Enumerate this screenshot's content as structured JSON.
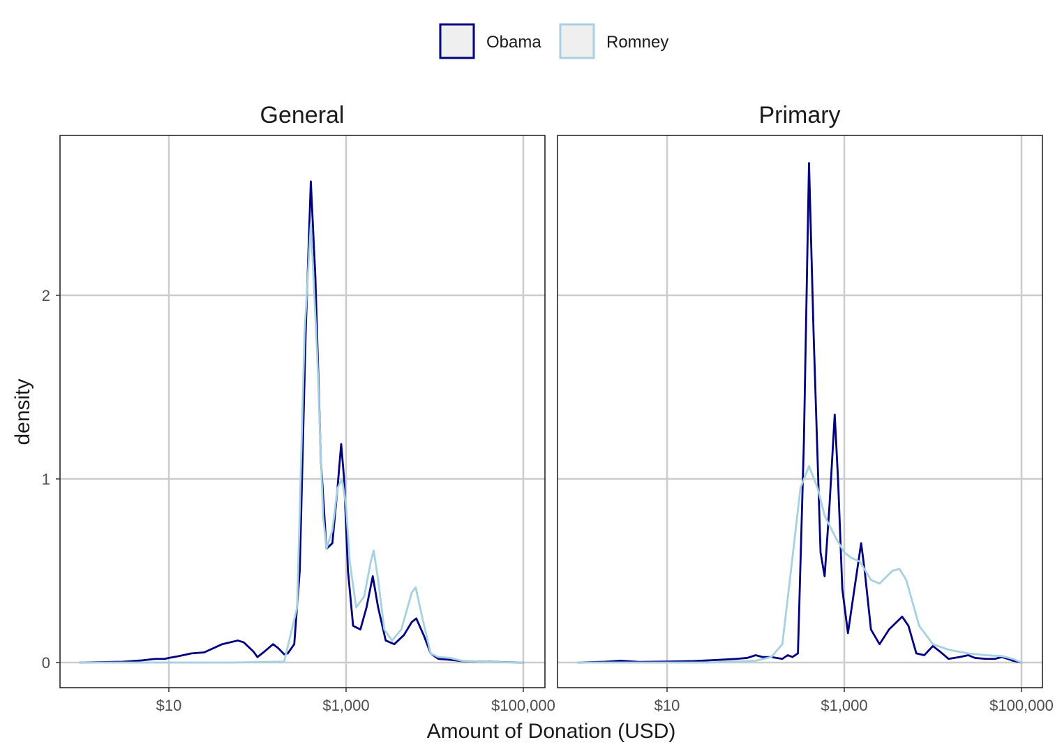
{
  "chart_data": {
    "type": "line",
    "subtype": "density",
    "xlabel": "Amount of Donation (USD)",
    "ylabel": "density",
    "x_scale": "log10",
    "xlim": [
      1,
      100000
    ],
    "ylim": [
      -0.13,
      2.85
    ],
    "x_ticks": [
      10,
      1000,
      100000
    ],
    "x_tick_labels": [
      "$10",
      "$1,000",
      "$100,000"
    ],
    "y_ticks": [
      0,
      1,
      2
    ],
    "y_tick_labels": [
      "0",
      "1",
      "2"
    ],
    "grid": true,
    "legend": {
      "position": "top",
      "entries": [
        {
          "label": "Obama",
          "color": "#000080"
        },
        {
          "label": "Romney",
          "color": "#A6D1E0"
        }
      ]
    },
    "panels": [
      {
        "title": "General",
        "series": [
          {
            "name": "Obama",
            "color": "#000080",
            "points": [
              [
                1,
                0
              ],
              [
                3,
                0.004
              ],
              [
                5,
                0.012
              ],
              [
                7,
                0.02
              ],
              [
                9,
                0.02
              ],
              [
                10,
                0.025
              ],
              [
                13,
                0.035
              ],
              [
                18,
                0.05
              ],
              [
                25,
                0.055
              ],
              [
                40,
                0.1
              ],
              [
                60,
                0.12
              ],
              [
                70,
                0.11
              ],
              [
                90,
                0.06
              ],
              [
                100,
                0.03
              ],
              [
                120,
                0.06
              ],
              [
                150,
                0.1
              ],
              [
                170,
                0.08
              ],
              [
                200,
                0.045
              ],
              [
                220,
                0.05
              ],
              [
                260,
                0.1
              ],
              [
                300,
                0.5
              ],
              [
                350,
                1.8
              ],
              [
                400,
                2.62
              ],
              [
                450,
                2.1
              ],
              [
                520,
                1.1
              ],
              [
                600,
                0.62
              ],
              [
                700,
                0.65
              ],
              [
                800,
                0.95
              ],
              [
                880,
                1.19
              ],
              [
                950,
                1.0
              ],
              [
                1050,
                0.5
              ],
              [
                1200,
                0.2
              ],
              [
                1450,
                0.18
              ],
              [
                1700,
                0.3
              ],
              [
                2000,
                0.47
              ],
              [
                2300,
                0.3
              ],
              [
                2800,
                0.12
              ],
              [
                3500,
                0.1
              ],
              [
                4500,
                0.15
              ],
              [
                5500,
                0.22
              ],
              [
                6200,
                0.24
              ],
              [
                7500,
                0.15
              ],
              [
                9000,
                0.05
              ],
              [
                11000,
                0.02
              ],
              [
                15000,
                0.015
              ],
              [
                20000,
                0.008
              ],
              [
                40000,
                0.004
              ],
              [
                100000,
                0
              ]
            ]
          },
          {
            "name": "Romney",
            "color": "#A6D1E0",
            "points": [
              [
                1,
                0
              ],
              [
                50,
                0
              ],
              [
                200,
                0.005
              ],
              [
                280,
                0.3
              ],
              [
                340,
                1.8
              ],
              [
                400,
                2.39
              ],
              [
                470,
                1.7
              ],
              [
                550,
                0.8
              ],
              [
                600,
                0.62
              ],
              [
                700,
                0.72
              ],
              [
                800,
                0.95
              ],
              [
                900,
                1.0
              ],
              [
                1000,
                0.85
              ],
              [
                1100,
                0.55
              ],
              [
                1300,
                0.3
              ],
              [
                1600,
                0.36
              ],
              [
                1900,
                0.55
              ],
              [
                2050,
                0.61
              ],
              [
                2300,
                0.45
              ],
              [
                2700,
                0.18
              ],
              [
                3300,
                0.12
              ],
              [
                4200,
                0.18
              ],
              [
                5500,
                0.38
              ],
              [
                6100,
                0.41
              ],
              [
                7200,
                0.25
              ],
              [
                9000,
                0.05
              ],
              [
                11000,
                0.03
              ],
              [
                15000,
                0.025
              ],
              [
                20000,
                0.01
              ],
              [
                40000,
                0.003
              ],
              [
                100000,
                0
              ]
            ]
          }
        ]
      },
      {
        "title": "Primary",
        "series": [
          {
            "name": "Obama",
            "color": "#000080",
            "points": [
              [
                1,
                0
              ],
              [
                2,
                0.004
              ],
              [
                3,
                0.01
              ],
              [
                5,
                0.003
              ],
              [
                10,
                0.005
              ],
              [
                20,
                0.008
              ],
              [
                40,
                0.015
              ],
              [
                60,
                0.02
              ],
              [
                80,
                0.025
              ],
              [
                100,
                0.04
              ],
              [
                120,
                0.03
              ],
              [
                150,
                0.03
              ],
              [
                200,
                0.02
              ],
              [
                230,
                0.04
              ],
              [
                260,
                0.03
              ],
              [
                300,
                0.05
              ],
              [
                350,
                1.2
              ],
              [
                400,
                2.72
              ],
              [
                450,
                1.8
              ],
              [
                540,
                0.6
              ],
              [
                600,
                0.47
              ],
              [
                680,
                0.85
              ],
              [
                780,
                1.35
              ],
              [
                850,
                1.0
              ],
              [
                950,
                0.4
              ],
              [
                1100,
                0.16
              ],
              [
                1300,
                0.4
              ],
              [
                1550,
                0.65
              ],
              [
                1700,
                0.5
              ],
              [
                2000,
                0.18
              ],
              [
                2500,
                0.1
              ],
              [
                3200,
                0.18
              ],
              [
                4500,
                0.25
              ],
              [
                5300,
                0.2
              ],
              [
                6500,
                0.05
              ],
              [
                8000,
                0.04
              ],
              [
                10000,
                0.09
              ],
              [
                12000,
                0.06
              ],
              [
                15000,
                0.02
              ],
              [
                20000,
                0.03
              ],
              [
                25000,
                0.04
              ],
              [
                30000,
                0.025
              ],
              [
                40000,
                0.02
              ],
              [
                50000,
                0.02
              ],
              [
                60000,
                0.03
              ],
              [
                70000,
                0.02
              ],
              [
                80000,
                0.01
              ],
              [
                100000,
                0
              ]
            ]
          },
          {
            "name": "Romney",
            "color": "#A6D1E0",
            "points": [
              [
                1,
                0
              ],
              [
                30,
                0
              ],
              [
                100,
                0.01
              ],
              [
                150,
                0.03
              ],
              [
                200,
                0.1
              ],
              [
                250,
                0.5
              ],
              [
                320,
                0.95
              ],
              [
                400,
                1.07
              ],
              [
                500,
                0.95
              ],
              [
                600,
                0.8
              ],
              [
                800,
                0.68
              ],
              [
                1000,
                0.6
              ],
              [
                1200,
                0.57
              ],
              [
                1500,
                0.55
              ],
              [
                2000,
                0.45
              ],
              [
                2500,
                0.43
              ],
              [
                3500,
                0.5
              ],
              [
                4200,
                0.51
              ],
              [
                5000,
                0.45
              ],
              [
                7000,
                0.2
              ],
              [
                10000,
                0.1
              ],
              [
                15000,
                0.07
              ],
              [
                25000,
                0.05
              ],
              [
                40000,
                0.04
              ],
              [
                60000,
                0.035
              ],
              [
                80000,
                0.02
              ],
              [
                100000,
                0
              ]
            ]
          }
        ]
      }
    ]
  }
}
